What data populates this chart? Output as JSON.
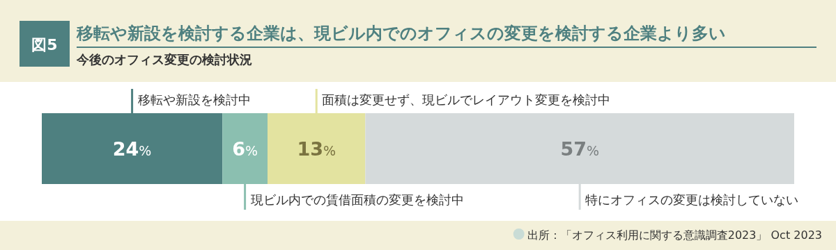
{
  "chart_data": {
    "type": "bar",
    "orientation": "horizontal",
    "stacked": true,
    "data_labels": true,
    "legend": "bottom right",
    "title": "移転や新設を検討する企業は、現ビル内でのオフィスの変更を検討する企業より多い",
    "subtitle": "今後のオフィス変更の検討状況",
    "categories": [
      null
    ],
    "series": [
      {
        "name": "移転や新設を検討中",
        "color": "#4e8080",
        "values": [
          24
        ],
        "value_labels": [
          "24%"
        ]
      },
      {
        "name": "現ビル内での賃借面積の変更を検討中",
        "color": "#8bbfb0",
        "values": [
          6
        ],
        "value_labels": [
          "6%"
        ]
      },
      {
        "name": "面積は変更せず、現ビルでレイアウト変更を検討中",
        "color": "#e3e3a0",
        "values": [
          13
        ],
        "value_labels": [
          "13%"
        ]
      },
      {
        "name": "特にオフィスの変更は検討していない",
        "color": "#d5dadb",
        "values": [
          57
        ],
        "value_labels": [
          "57%"
        ]
      }
    ],
    "annotations": [
      "図5",
      "出所：「オフィス利用に関する意識調査2023」 Oct 2023"
    ]
  }
}
